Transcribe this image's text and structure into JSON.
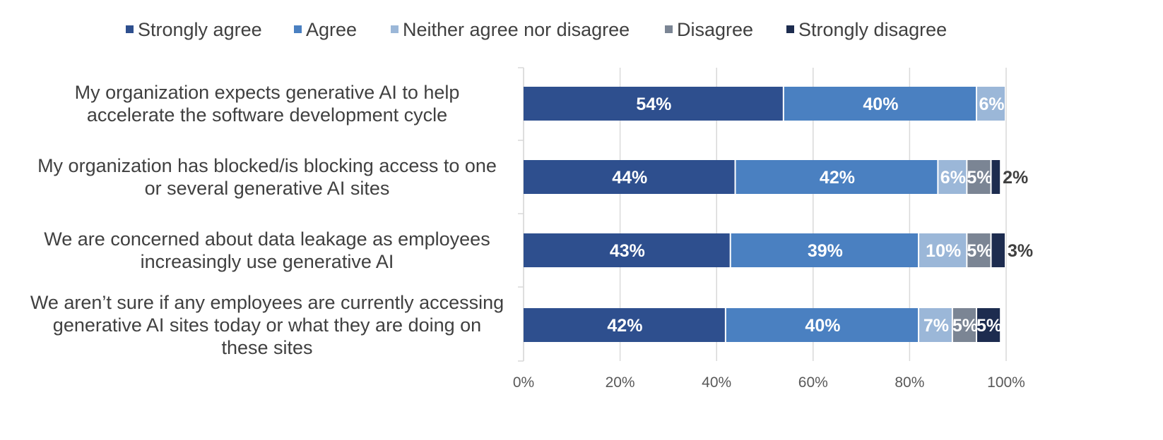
{
  "chart_data": {
    "type": "bar",
    "orientation": "horizontal",
    "stacked": true,
    "title": "",
    "xlabel": "",
    "ylabel": "",
    "xlim": [
      0,
      100
    ],
    "grid": true,
    "legend_position": "top",
    "x_ticks": [
      "0%",
      "20%",
      "40%",
      "60%",
      "80%",
      "100%"
    ],
    "categories": [
      [
        "My organization expects generative AI to help",
        "accelerate the software development cycle"
      ],
      [
        "My organization has blocked/is blocking access to one",
        "or several generative AI sites"
      ],
      [
        "We are concerned about data leakage as employees",
        "increasingly use generative AI"
      ],
      [
        "We aren’t sure if any employees are currently accessing",
        "generative AI sites today or what they are doing on",
        "these sites"
      ]
    ],
    "series": [
      {
        "name": "Strongly agree",
        "color": "#2e4f8e",
        "label_color": "#ffffff",
        "values": [
          54,
          44,
          43,
          42
        ],
        "labels": [
          "54%",
          "44%",
          "43%",
          "42%"
        ]
      },
      {
        "name": "Agree",
        "color": "#4a80c1",
        "label_color": "#ffffff",
        "values": [
          40,
          42,
          39,
          40
        ],
        "labels": [
          "40%",
          "42%",
          "39%",
          "40%"
        ]
      },
      {
        "name": "Neither agree nor disagree",
        "color": "#9bb7d8",
        "label_color": "#ffffff",
        "values": [
          6,
          6,
          10,
          7
        ],
        "labels": [
          "6%",
          "6%",
          "10%",
          "7%"
        ]
      },
      {
        "name": "Disagree",
        "color": "#7b8594",
        "label_color": "#ffffff",
        "values": [
          0,
          5,
          5,
          5
        ],
        "labels": [
          "",
          "5%",
          "5%",
          "5%"
        ]
      },
      {
        "name": "Strongly disagree",
        "color": "#1d2c4f",
        "label_color": "#404040",
        "values": [
          0,
          2,
          3,
          5
        ],
        "labels": [
          "",
          "2%",
          "3%",
          "5%"
        ],
        "label_outside": [
          false,
          true,
          true,
          false
        ]
      }
    ]
  }
}
